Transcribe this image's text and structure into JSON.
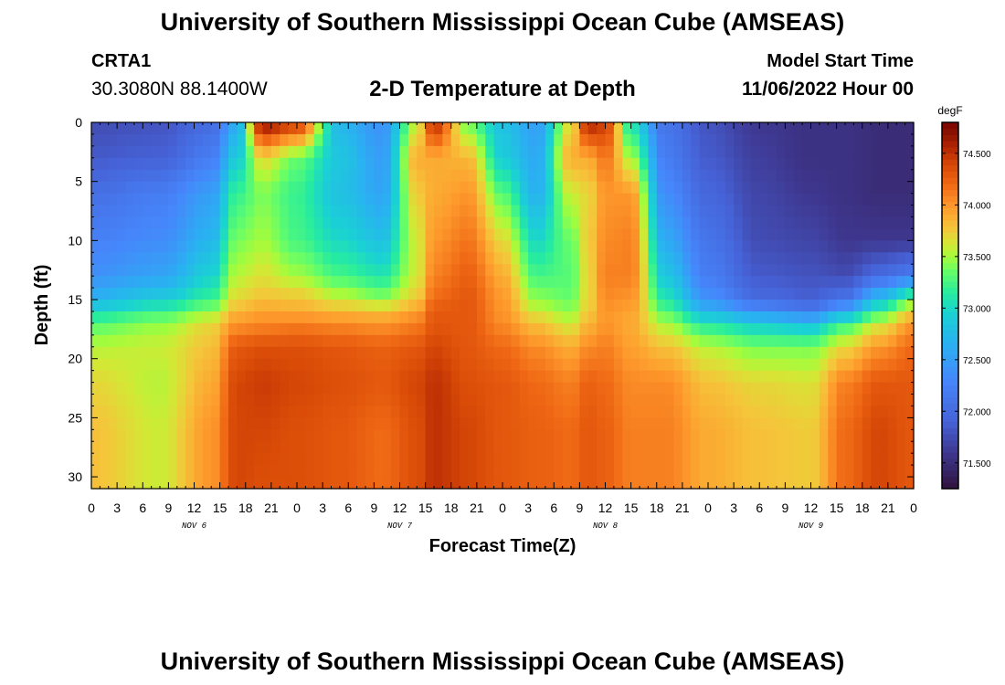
{
  "header": {
    "title": "University of Southern Mississippi Ocean Cube (AMSEAS)",
    "station": "CRTA1",
    "coords": "30.3080N  88.1400W",
    "subtitle": "2-D Temperature at Depth",
    "model_start_label": "Model Start Time",
    "model_start_value": "11/06/2022 Hour 00"
  },
  "footer": {
    "title": "University of Southern Mississippi Ocean Cube (AMSEAS)"
  },
  "chart_data": {
    "type": "heatmap",
    "title": "2-D Temperature at Depth",
    "xlabel": "Forecast Time(Z)",
    "ylabel": "Depth (ft)",
    "x_tick_labels": [
      "0",
      "3",
      "6",
      "9",
      "12",
      "15",
      "18",
      "21",
      "0",
      "3",
      "6",
      "9",
      "12",
      "15",
      "18",
      "21",
      "0",
      "3",
      "6",
      "9",
      "12",
      "15",
      "18",
      "21",
      "0",
      "3",
      "6",
      "9",
      "12",
      "15",
      "18",
      "21",
      "0"
    ],
    "x_range_hours": [
      0,
      96
    ],
    "day_labels": [
      {
        "label": "NOV 6",
        "hour": 12
      },
      {
        "label": "NOV 7",
        "hour": 36
      },
      {
        "label": "NOV 8",
        "hour": 60
      },
      {
        "label": "NOV 9",
        "hour": 84
      }
    ],
    "y_ticks": [
      0,
      5,
      10,
      15,
      20,
      25,
      30
    ],
    "ylim": [
      0,
      31
    ],
    "colorbar": {
      "unit": "degF",
      "range": [
        71.25,
        74.8
      ],
      "tick_labels": [
        "71.500",
        "72.000",
        "72.500",
        "73.000",
        "73.500",
        "74.000",
        "74.500"
      ],
      "colormap": [
        "#30123b",
        "#3e378f",
        "#4662d7",
        "#4686fb",
        "#2ab0f2",
        "#1ad1d4",
        "#26ec9f",
        "#64fd6a",
        "#a4fc3c",
        "#d3e835",
        "#f5c53a",
        "#fe9b2d",
        "#f06915",
        "#d84a07",
        "#b52703",
        "#8a1301",
        "#7a0403"
      ],
      "colormap_stops": [
        71.25,
        71.6,
        71.9,
        72.3,
        72.65,
        72.95,
        73.15,
        73.35,
        73.5,
        73.62,
        73.78,
        73.98,
        74.2,
        74.38,
        74.55,
        74.7,
        74.8
      ]
    },
    "grid": false,
    "series": [
      {
        "name": "temperature_profiles",
        "note": "columns keyed by forecast hour; values sampled at depths (ft)",
        "depths_ft": [
          0,
          3,
          6,
          10,
          13,
          15,
          16,
          17,
          19,
          22,
          26,
          31
        ],
        "columns": [
          {
            "hour": 0,
            "values": [
              71.75,
              71.85,
              72.05,
              72.25,
              72.4,
              72.7,
              73.0,
              73.3,
              73.55,
              73.7,
              73.8,
              73.8
            ]
          },
          {
            "hour": 8,
            "values": [
              71.8,
              71.9,
              72.2,
              72.35,
              72.55,
              72.9,
              73.2,
              73.45,
              73.6,
              73.55,
              73.6,
              73.6
            ]
          },
          {
            "hour": 14,
            "values": [
              72.0,
              72.2,
              72.5,
              72.7,
              72.95,
              73.2,
              73.45,
              73.7,
              73.8,
              73.9,
              74.0,
              74.0
            ]
          },
          {
            "hour": 17,
            "values": [
              72.6,
              72.9,
              73.2,
              73.4,
              73.55,
              73.7,
              73.85,
              74.0,
              74.3,
              74.4,
              74.4,
              74.4
            ]
          },
          {
            "hour": 20,
            "values": [
              74.72,
              73.7,
              73.4,
              73.5,
              73.65,
              73.8,
              73.95,
              74.05,
              74.35,
              74.45,
              74.4,
              74.35
            ]
          },
          {
            "hour": 24,
            "values": [
              74.5,
              73.35,
              73.2,
              73.25,
              73.5,
              73.8,
              73.9,
              74.1,
              74.35,
              74.4,
              74.35,
              74.35
            ]
          },
          {
            "hour": 29,
            "values": [
              72.7,
              72.85,
              72.8,
              73.0,
              73.25,
              73.6,
              73.85,
              74.05,
              74.3,
              74.35,
              74.3,
              74.3
            ]
          },
          {
            "hour": 34,
            "values": [
              72.4,
              72.5,
              72.55,
              72.8,
              73.1,
              73.45,
              73.8,
              74.0,
              74.25,
              74.3,
              74.2,
              74.2
            ]
          },
          {
            "hour": 38,
            "values": [
              73.55,
              73.9,
              73.75,
              73.6,
              73.6,
              73.75,
              73.95,
              74.1,
              74.3,
              74.4,
              74.35,
              74.35
            ]
          },
          {
            "hour": 40,
            "values": [
              74.55,
              73.9,
              73.9,
              74.0,
              74.1,
              74.2,
              74.3,
              74.3,
              74.4,
              74.5,
              74.5,
              74.5
            ]
          },
          {
            "hour": 44,
            "values": [
              73.35,
              73.85,
              74.0,
              74.15,
              74.25,
              74.3,
              74.3,
              74.3,
              74.3,
              74.35,
              74.4,
              74.4
            ]
          },
          {
            "hour": 48,
            "values": [
              72.8,
              72.9,
              73.3,
              73.7,
              73.9,
              74.0,
              74.0,
              74.05,
              74.2,
              74.3,
              74.3,
              74.3
            ]
          },
          {
            "hour": 52,
            "values": [
              72.5,
              72.6,
              72.65,
              73.0,
              73.25,
              73.45,
              73.6,
              73.8,
              74.05,
              74.2,
              74.25,
              74.25
            ]
          },
          {
            "hour": 56,
            "values": [
              73.65,
              73.9,
              73.6,
              73.35,
              73.3,
              73.35,
              73.45,
              73.6,
              73.9,
              74.1,
              74.2,
              74.2
            ]
          },
          {
            "hour": 58,
            "values": [
              74.6,
              73.9,
              73.7,
              73.75,
              73.7,
              73.7,
              73.75,
              73.85,
              74.05,
              74.25,
              74.3,
              74.3
            ]
          },
          {
            "hour": 60,
            "values": [
              74.45,
              74.15,
              74.0,
              74.05,
              74.1,
              74.05,
              74.0,
              74.0,
              74.1,
              74.2,
              74.25,
              74.25
            ]
          },
          {
            "hour": 63,
            "values": [
              73.05,
              73.5,
              74.0,
              74.1,
              74.1,
              74.0,
              73.95,
              73.9,
              73.95,
              74.05,
              74.1,
              74.1
            ]
          },
          {
            "hour": 67,
            "values": [
              72.1,
              72.2,
              72.35,
              72.6,
              72.85,
              73.1,
              73.3,
              73.5,
              73.8,
              74.05,
              74.1,
              74.1
            ]
          },
          {
            "hour": 72,
            "values": [
              71.8,
              71.85,
              71.95,
              72.1,
              72.2,
              72.4,
              72.7,
              73.1,
              73.55,
              73.8,
              73.9,
              73.9
            ]
          },
          {
            "hour": 78,
            "values": [
              71.6,
              71.65,
              71.7,
              71.75,
              71.85,
              72.0,
              72.4,
              72.9,
              73.4,
              73.7,
              73.8,
              73.8
            ]
          },
          {
            "hour": 84,
            "values": [
              71.55,
              71.55,
              71.6,
              71.7,
              71.8,
              71.9,
              72.2,
              72.8,
              73.4,
              73.65,
              73.75,
              73.75
            ]
          },
          {
            "hour": 88,
            "values": [
              71.55,
              71.55,
              71.55,
              71.6,
              71.75,
              72.1,
              72.6,
              73.2,
              73.7,
              74.1,
              74.2,
              74.2
            ]
          },
          {
            "hour": 92,
            "values": [
              71.5,
              71.5,
              71.5,
              71.6,
              72.0,
              72.8,
              73.2,
              73.6,
              74.0,
              74.3,
              74.4,
              74.4
            ]
          },
          {
            "hour": 96,
            "values": [
              71.5,
              71.5,
              71.5,
              71.6,
              72.2,
              73.4,
              73.7,
              74.0,
              74.2,
              74.3,
              74.3,
              74.3
            ]
          }
        ]
      }
    ]
  }
}
